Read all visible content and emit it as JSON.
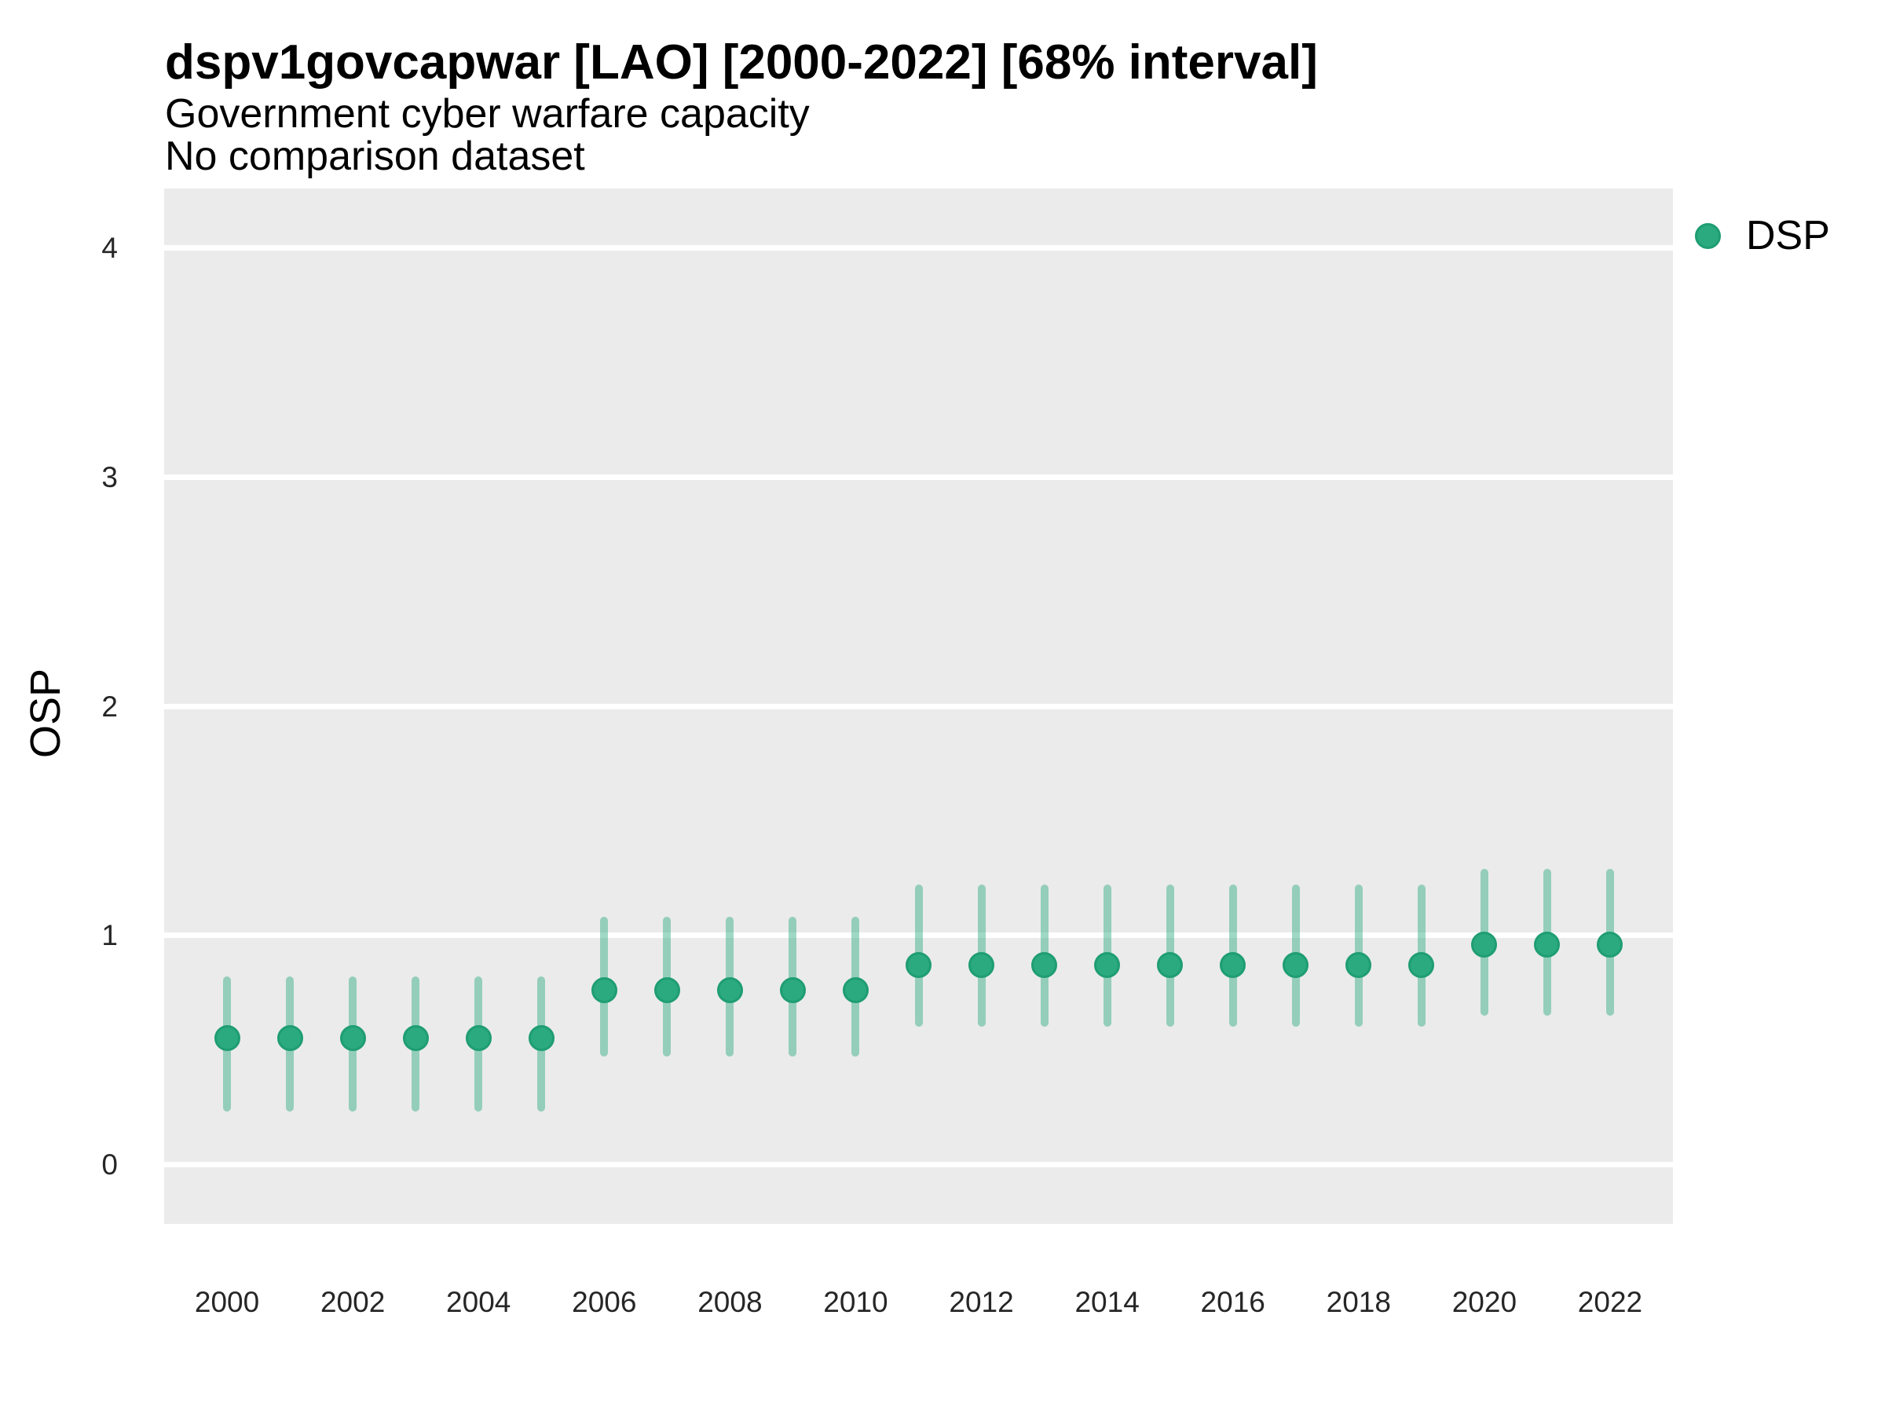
{
  "header": {
    "title": "dspv1govcapwar [LAO] [2000-2022] [68% interval]",
    "subtitle": "Government cyber warfare capacity",
    "subtitle2": "No comparison dataset"
  },
  "axes": {
    "y_label": "OSP"
  },
  "legend": {
    "items": [
      {
        "label": "DSP",
        "color": "#2AAA7E"
      }
    ]
  },
  "colors": {
    "point_fill": "#2AAA7E",
    "point_border": "#1F9D73",
    "interval_line": "rgba(42,170,126,0.45)",
    "panel_background": "#EBEBEB",
    "gridline": "#FFFFFF",
    "tick_text": "#262626",
    "text": "#000000"
  },
  "chart_data": {
    "type": "pointrange",
    "title": "dspv1govcapwar [LAO] [2000-2022] [68% interval]",
    "subtitle": "Government cyber warfare capacity",
    "comparison_note": "No comparison dataset",
    "interval_level": "68%",
    "xlabel": "",
    "ylabel": "OSP",
    "ylim": [
      -0.26,
      4.26
    ],
    "xlim": [
      1999,
      2023
    ],
    "y_ticks": [
      0,
      1,
      2,
      3,
      4
    ],
    "x_ticks": [
      2000,
      2002,
      2004,
      2006,
      2008,
      2010,
      2012,
      2014,
      2016,
      2018,
      2020,
      2022
    ],
    "grid": "major-horizontal-only",
    "legend_position": "right-top",
    "series": [
      {
        "name": "DSP",
        "points": [
          {
            "year": 2000,
            "value": 0.55,
            "lo": 0.23,
            "hi": 0.82
          },
          {
            "year": 2001,
            "value": 0.55,
            "lo": 0.23,
            "hi": 0.82
          },
          {
            "year": 2002,
            "value": 0.55,
            "lo": 0.23,
            "hi": 0.82
          },
          {
            "year": 2003,
            "value": 0.55,
            "lo": 0.23,
            "hi": 0.82
          },
          {
            "year": 2004,
            "value": 0.55,
            "lo": 0.23,
            "hi": 0.82
          },
          {
            "year": 2005,
            "value": 0.55,
            "lo": 0.23,
            "hi": 0.82
          },
          {
            "year": 2006,
            "value": 0.76,
            "lo": 0.47,
            "hi": 1.08
          },
          {
            "year": 2007,
            "value": 0.76,
            "lo": 0.47,
            "hi": 1.08
          },
          {
            "year": 2008,
            "value": 0.76,
            "lo": 0.47,
            "hi": 1.08
          },
          {
            "year": 2009,
            "value": 0.76,
            "lo": 0.47,
            "hi": 1.08
          },
          {
            "year": 2010,
            "value": 0.76,
            "lo": 0.47,
            "hi": 1.08
          },
          {
            "year": 2011,
            "value": 0.87,
            "lo": 0.6,
            "hi": 1.22
          },
          {
            "year": 2012,
            "value": 0.87,
            "lo": 0.6,
            "hi": 1.22
          },
          {
            "year": 2013,
            "value": 0.87,
            "lo": 0.6,
            "hi": 1.22
          },
          {
            "year": 2014,
            "value": 0.87,
            "lo": 0.6,
            "hi": 1.22
          },
          {
            "year": 2015,
            "value": 0.87,
            "lo": 0.6,
            "hi": 1.22
          },
          {
            "year": 2016,
            "value": 0.87,
            "lo": 0.6,
            "hi": 1.22
          },
          {
            "year": 2017,
            "value": 0.87,
            "lo": 0.6,
            "hi": 1.22
          },
          {
            "year": 2018,
            "value": 0.87,
            "lo": 0.6,
            "hi": 1.22
          },
          {
            "year": 2019,
            "value": 0.87,
            "lo": 0.6,
            "hi": 1.22
          },
          {
            "year": 2020,
            "value": 0.96,
            "lo": 0.65,
            "hi": 1.29
          },
          {
            "year": 2021,
            "value": 0.96,
            "lo": 0.65,
            "hi": 1.29
          },
          {
            "year": 2022,
            "value": 0.96,
            "lo": 0.65,
            "hi": 1.29
          }
        ]
      }
    ]
  }
}
